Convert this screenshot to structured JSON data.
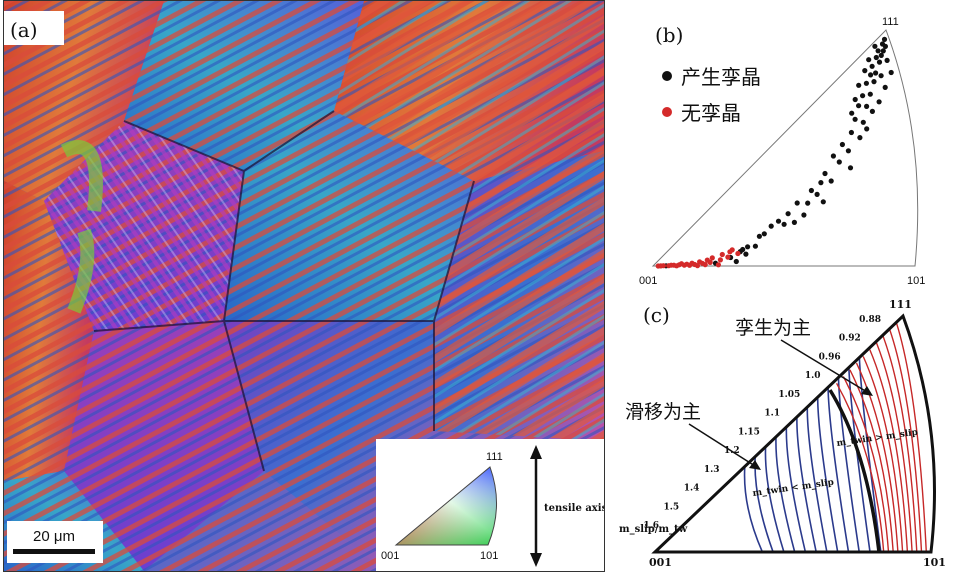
{
  "panel_a": {
    "label": "(a)",
    "scale_bar": "20 μm",
    "legend": {
      "corner_top": "111",
      "corner_left": "001",
      "corner_right": "101"
    },
    "axis_label": "tensile axis"
  },
  "panel_b": {
    "label": "(b)",
    "corner_top": "111",
    "corner_left": "001",
    "corner_right": "101",
    "legend": [
      {
        "text": "产生孪晶",
        "color": "#111111"
      },
      {
        "text": "无孪晶",
        "color": "#d42a2a"
      }
    ]
  },
  "panel_c": {
    "label": "(c)",
    "corner_top": "111",
    "corner_left": "001",
    "corner_right": "101",
    "annotation_twin": "孪生为主",
    "annotation_slip": "滑移为主",
    "region_twin": "m_twin > m_slip",
    "region_slip": "m_twin < m_slip",
    "axis_title": "m_slip/m_tw",
    "ticks": [
      "0.88",
      "0.92",
      "0.96",
      "1.0",
      "1.05",
      "1.1",
      "1.15",
      "1.2",
      "1.3",
      "1.4",
      "1.5",
      "1.6"
    ],
    "twin_color": "#c62828",
    "slip_color": "#2b3a8c"
  },
  "chart_data": {
    "type": "scatter",
    "series": [
      {
        "name": "产生孪晶",
        "color": "#111111",
        "points": [
          [
            0.05,
            0.02
          ],
          [
            0.24,
            0.05
          ],
          [
            0.32,
            0.06
          ],
          [
            0.3,
            0.12
          ],
          [
            0.36,
            0.14
          ],
          [
            0.34,
            0.18
          ],
          [
            0.35,
            0.2
          ],
          [
            0.37,
            0.22
          ],
          [
            0.4,
            0.21
          ],
          [
            0.42,
            0.3
          ],
          [
            0.44,
            0.31
          ],
          [
            0.47,
            0.36
          ],
          [
            0.5,
            0.38
          ],
          [
            0.52,
            0.34
          ],
          [
            0.54,
            0.41
          ],
          [
            0.56,
            0.33
          ],
          [
            0.6,
            0.36
          ],
          [
            0.62,
            0.43
          ],
          [
            0.58,
            0.46
          ],
          [
            0.64,
            0.5
          ],
          [
            0.66,
            0.46
          ],
          [
            0.68,
            0.52
          ],
          [
            0.7,
            0.56
          ],
          [
            0.72,
            0.5
          ],
          [
            0.74,
            0.63
          ],
          [
            0.76,
            0.58
          ],
          [
            0.78,
            0.66
          ],
          [
            0.8,
            0.61
          ],
          [
            0.82,
            0.69
          ],
          [
            0.84,
            0.74
          ],
          [
            0.85,
            0.64
          ],
          [
            0.86,
            0.79
          ],
          [
            0.87,
            0.7
          ],
          [
            0.88,
            0.82
          ],
          [
            0.89,
            0.76
          ],
          [
            0.9,
            0.86
          ],
          [
            0.91,
            0.8
          ],
          [
            0.92,
            0.88
          ],
          [
            0.93,
            0.84
          ],
          [
            0.93,
            0.91
          ],
          [
            0.94,
            0.87
          ],
          [
            0.95,
            0.93
          ],
          [
            0.96,
            0.9
          ],
          [
            0.96,
            0.95
          ],
          [
            0.97,
            0.92
          ],
          [
            0.98,
            0.96
          ],
          [
            0.98,
            0.93
          ],
          [
            0.99,
            0.97
          ],
          [
            0.99,
            0.94
          ],
          [
            0.91,
            0.72
          ],
          [
            0.94,
            0.74
          ],
          [
            0.97,
            0.78
          ],
          [
            1.0,
            0.82
          ],
          [
            0.88,
            0.66
          ],
          [
            0.8,
            0.52
          ],
          [
            0.68,
            0.4
          ],
          [
            0.96,
            0.84
          ],
          [
            0.99,
            0.88
          ],
          [
            0.92,
            0.95
          ],
          [
            0.95,
            0.98
          ],
          [
            0.9,
            0.92
          ],
          [
            0.87,
            0.88
          ],
          [
            0.85,
            0.83
          ],
          [
            0.83,
            0.78
          ]
        ]
      },
      {
        "name": "无孪晶",
        "color": "#d42a2a",
        "points": [
          [
            0.02,
            0.01
          ],
          [
            0.04,
            0.03
          ],
          [
            0.06,
            0.02
          ],
          [
            0.08,
            0.04
          ],
          [
            0.09,
            0.01
          ],
          [
            0.1,
            0.05
          ],
          [
            0.12,
            0.03
          ],
          [
            0.13,
            0.06
          ],
          [
            0.14,
            0.02
          ],
          [
            0.15,
            0.08
          ],
          [
            0.16,
            0.04
          ],
          [
            0.17,
            0.01
          ],
          [
            0.18,
            0.1
          ],
          [
            0.19,
            0.06
          ],
          [
            0.2,
            0.03
          ],
          [
            0.21,
            0.12
          ],
          [
            0.22,
            0.07
          ],
          [
            0.23,
            0.15
          ],
          [
            0.25,
            0.02
          ],
          [
            0.26,
            0.1
          ],
          [
            0.27,
            0.18
          ],
          [
            0.29,
            0.13
          ],
          [
            0.3,
            0.2
          ],
          [
            0.31,
            0.22
          ],
          [
            0.33,
            0.16
          ],
          [
            0.11,
            0.09
          ],
          [
            0.07,
            0.05
          ],
          [
            0.03,
            0.02
          ]
        ]
      }
    ]
  }
}
